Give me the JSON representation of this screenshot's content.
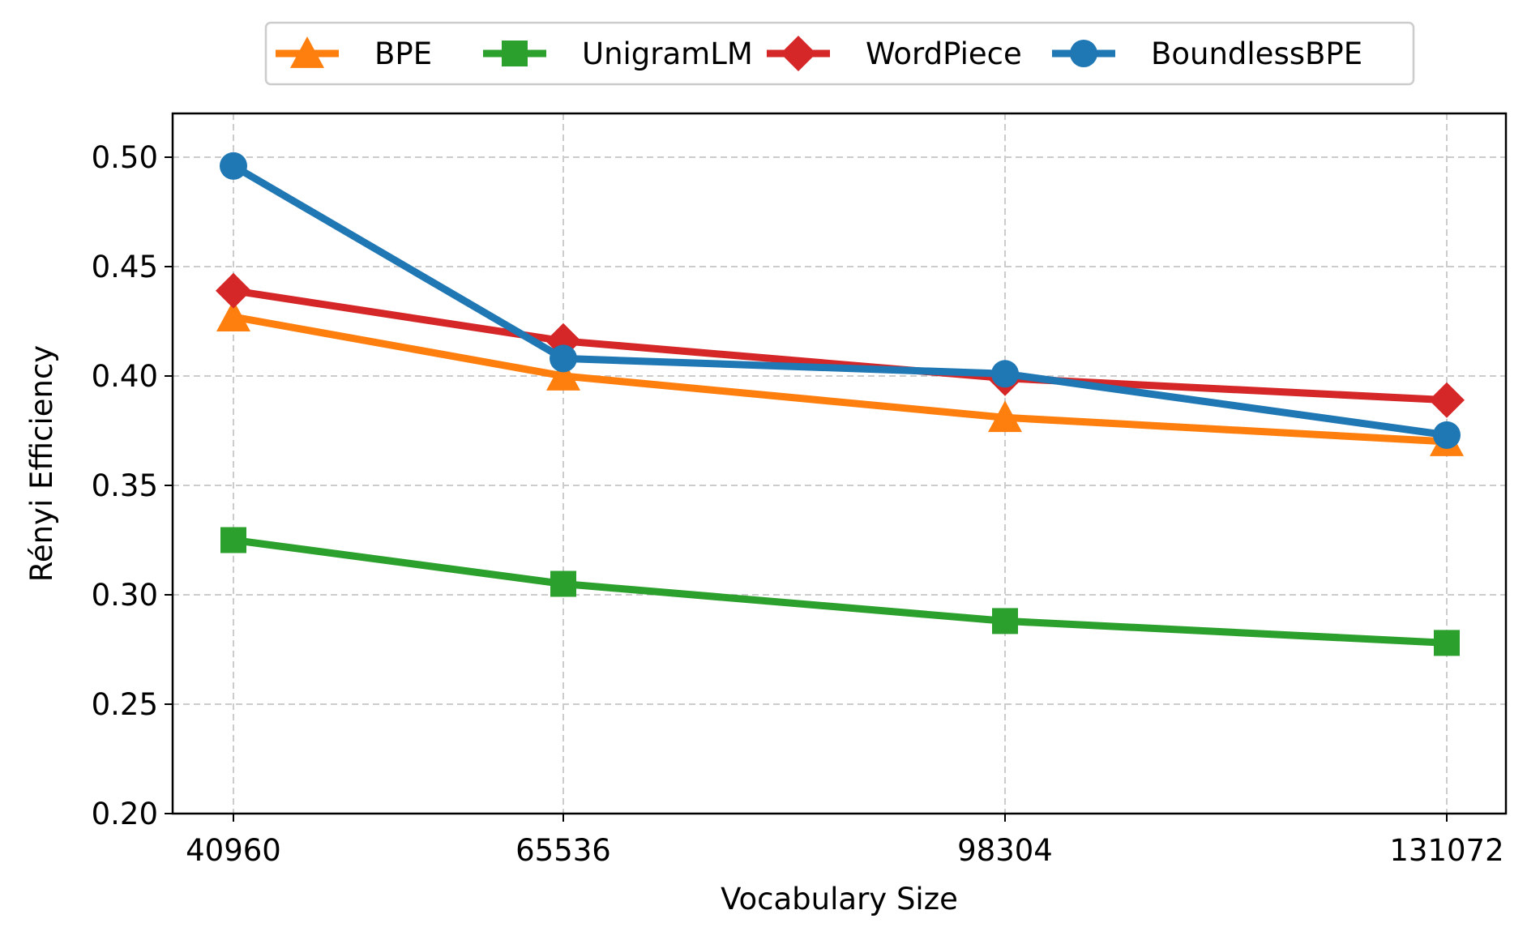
{
  "chart_data": {
    "type": "line",
    "title": "",
    "xlabel": "Vocabulary Size",
    "ylabel": "Rényi Efficiency",
    "x": [
      40960,
      65536,
      98304,
      131072
    ],
    "x_tick_labels": [
      "40960",
      "65536",
      "98304",
      "131072"
    ],
    "ylim": [
      0.2,
      0.52
    ],
    "y_ticks": [
      0.2,
      0.25,
      0.3,
      0.35,
      0.4,
      0.45,
      0.5
    ],
    "y_tick_labels": [
      "0.20",
      "0.25",
      "0.30",
      "0.35",
      "0.40",
      "0.45",
      "0.50"
    ],
    "grid": true,
    "legend_position": "top-center, outside",
    "series": [
      {
        "name": "BPE",
        "color": "#ff7f0e",
        "marker": "triangle-up",
        "values": [
          0.427,
          0.4,
          0.381,
          0.37
        ]
      },
      {
        "name": "UnigramLM",
        "color": "#2ca02c",
        "marker": "square",
        "values": [
          0.325,
          0.305,
          0.288,
          0.278
        ]
      },
      {
        "name": "WordPiece",
        "color": "#d62728",
        "marker": "diamond",
        "values": [
          0.439,
          0.416,
          0.399,
          0.389
        ]
      },
      {
        "name": "BoundlessBPE",
        "color": "#1f77b4",
        "marker": "circle",
        "values": [
          0.496,
          0.408,
          0.401,
          0.373
        ]
      }
    ]
  }
}
